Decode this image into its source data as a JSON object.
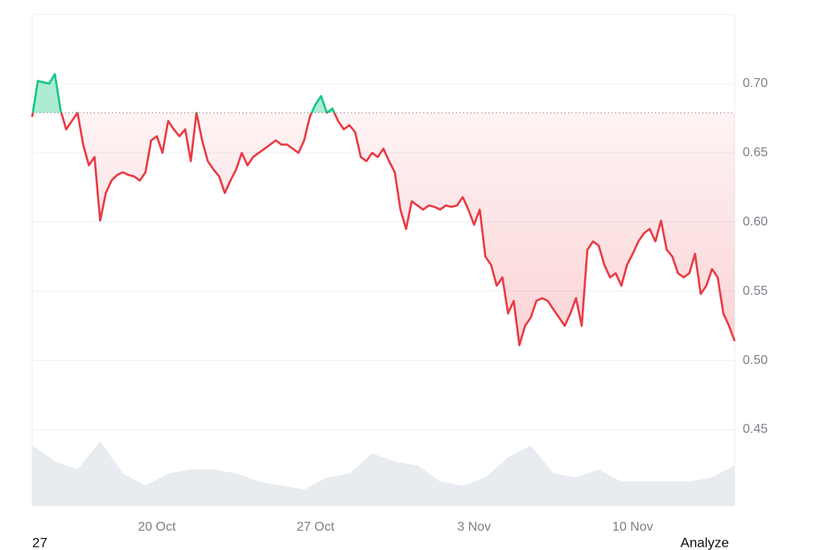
{
  "chart_data": {
    "type": "line",
    "categories": [
      null,
      null,
      null,
      null,
      null,
      null,
      null,
      null,
      null,
      null,
      null,
      null,
      null,
      null,
      null,
      null,
      null,
      null,
      null,
      null,
      null,
      null,
      "20 Oct",
      null,
      null,
      null,
      null,
      null,
      null,
      null,
      null,
      null,
      null,
      null,
      null,
      null,
      null,
      null,
      null,
      null,
      null,
      null,
      null,
      null,
      null,
      null,
      null,
      null,
      null,
      null,
      "27 Oct",
      null,
      null,
      null,
      null,
      null,
      null,
      null,
      null,
      null,
      null,
      null,
      null,
      null,
      null,
      null,
      null,
      null,
      null,
      null,
      null,
      null,
      null,
      null,
      null,
      null,
      null,
      null,
      "3 Nov",
      null,
      null,
      null,
      null,
      null,
      null,
      null,
      null,
      null,
      null,
      null,
      null,
      null,
      null,
      null,
      null,
      null,
      null,
      null,
      null,
      null,
      null,
      null,
      null,
      null,
      null,
      null,
      "10 Nov",
      null,
      null,
      null,
      null,
      null,
      null,
      null,
      null,
      null,
      null,
      null,
      null,
      null,
      null,
      null,
      null,
      null,
      null
    ],
    "values": [
      0.676,
      0.702,
      0.701,
      0.7,
      0.707,
      0.681,
      0.667,
      0.673,
      0.679,
      0.656,
      0.641,
      0.647,
      0.601,
      0.621,
      0.63,
      0.634,
      0.636,
      0.634,
      0.633,
      0.63,
      0.636,
      0.659,
      0.662,
      0.65,
      0.673,
      0.667,
      0.662,
      0.667,
      0.644,
      0.679,
      0.659,
      0.644,
      0.638,
      0.633,
      0.621,
      0.63,
      0.638,
      0.65,
      0.641,
      0.647,
      0.65,
      0.653,
      0.656,
      0.659,
      0.656,
      0.656,
      0.653,
      0.65,
      0.659,
      0.676,
      0.685,
      0.691,
      0.679,
      0.682,
      0.673,
      0.667,
      0.67,
      0.665,
      0.647,
      0.644,
      0.65,
      0.647,
      0.653,
      0.644,
      0.636,
      0.609,
      0.595,
      0.615,
      0.612,
      0.609,
      0.612,
      0.611,
      0.609,
      0.612,
      0.611,
      0.612,
      0.618,
      0.609,
      0.598,
      0.609,
      0.575,
      0.569,
      0.554,
      0.56,
      0.534,
      0.543,
      0.511,
      0.525,
      0.531,
      0.543,
      0.545,
      0.543,
      0.537,
      0.531,
      0.525,
      0.534,
      0.545,
      0.525,
      0.58,
      0.586,
      0.583,
      0.569,
      0.56,
      0.563,
      0.554,
      0.569,
      0.577,
      0.586,
      0.592,
      0.595,
      0.586,
      0.601,
      0.58,
      0.575,
      0.563,
      0.56,
      0.563,
      0.577,
      0.548,
      0.554,
      0.566,
      0.56,
      0.534,
      0.525,
      0.514
    ],
    "baseline": 0.679,
    "up_color": "#16c784",
    "down_color": "#ea3943",
    "ylim": [
      0.395,
      0.75
    ],
    "yticks": [
      0.45,
      0.5,
      0.55,
      0.6,
      0.65,
      0.7
    ],
    "yticks_fmt": [
      {
        "value": 0.45,
        "label": "0.45"
      },
      {
        "value": 0.5,
        "label": "0.50"
      },
      {
        "value": 0.55,
        "label": "0.55"
      },
      {
        "value": 0.6,
        "label": "0.60"
      },
      {
        "value": 0.65,
        "label": "0.65"
      },
      {
        "value": 0.7,
        "label": "0.70"
      }
    ],
    "grid": true,
    "volume": {
      "color": "#e8ebef",
      "values": [
        75,
        55,
        45,
        80,
        40,
        25,
        40,
        45,
        45,
        40,
        30,
        25,
        20,
        35,
        40,
        65,
        55,
        50,
        30,
        25,
        35,
        60,
        75,
        40,
        35,
        45,
        30,
        30,
        30,
        30,
        35,
        50
      ],
      "ylim": [
        0,
        100
      ]
    },
    "footer_left": "27",
    "footer_right": "Analyze"
  }
}
